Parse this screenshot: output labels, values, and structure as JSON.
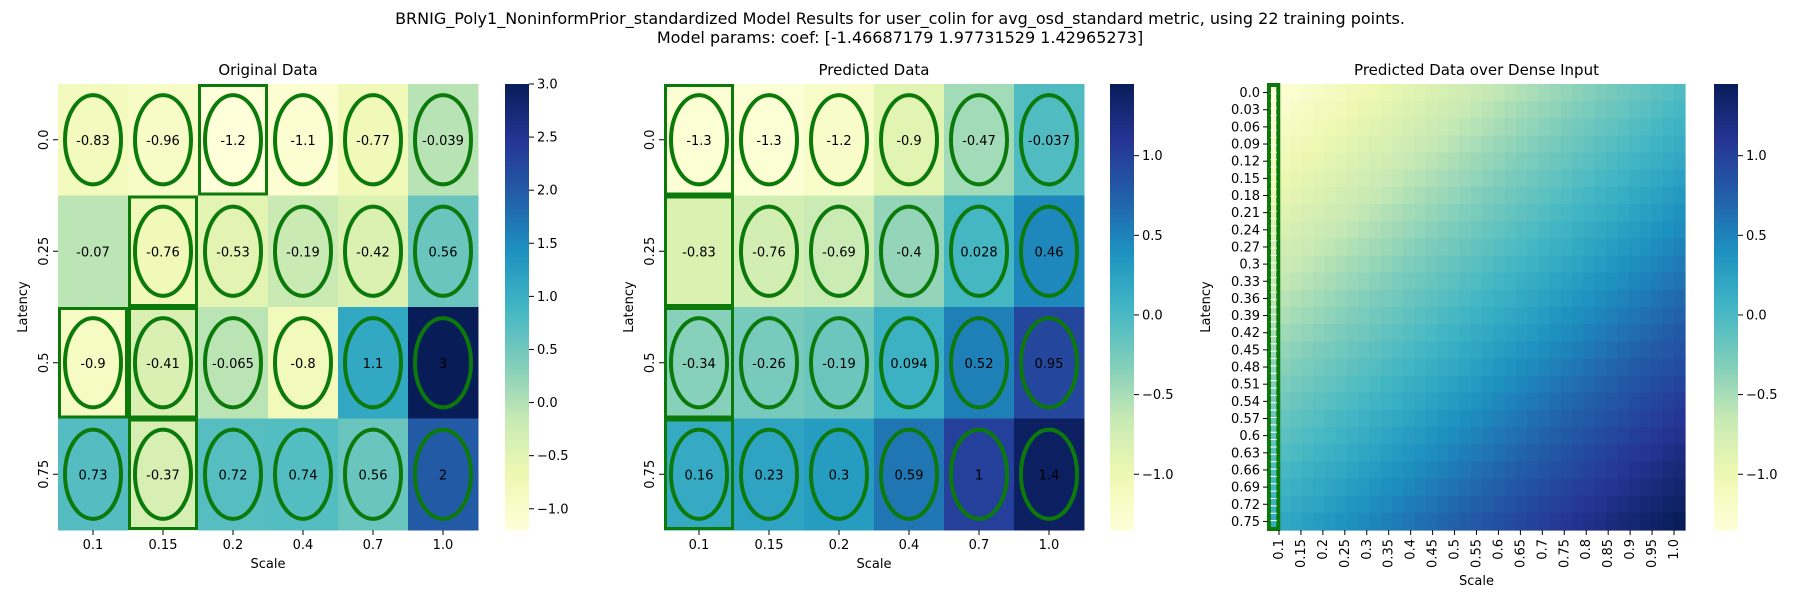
{
  "figure": {
    "title_line1": "BRNIG_Poly1_NoninformPrior_standardized Model Results for user_colin for avg_osd_standard metric, using 22 training points.",
    "title_line2": "Model params: coef: [-1.46687179  1.97731529  1.42965273]"
  },
  "colors": {
    "colormap": "YlGnBu",
    "highlight": "#0b7a0b"
  },
  "chart_data": [
    {
      "type": "heatmap",
      "title": "Original Data",
      "xlabel": "Scale",
      "ylabel": "Latency",
      "x_labels": [
        "0.1",
        "0.15",
        "0.2",
        "0.4",
        "0.7",
        "1.0"
      ],
      "y_labels": [
        "0.0",
        "0.25",
        "0.5",
        "0.75"
      ],
      "values": [
        [
          -0.83,
          -0.96,
          -1.2,
          -1.1,
          -0.77,
          -0.039
        ],
        [
          -0.07,
          -0.76,
          -0.53,
          -0.19,
          -0.42,
          0.56
        ],
        [
          -0.9,
          -0.41,
          -0.065,
          -0.8,
          1.1,
          3
        ],
        [
          0.73,
          -0.37,
          0.72,
          0.74,
          0.56,
          2
        ]
      ],
      "cell_text": [
        [
          "-0.83",
          "-0.96",
          "-1.2",
          "-1.1",
          "-0.77",
          "-0.039"
        ],
        [
          "-0.07",
          "-0.76",
          "-0.53",
          "-0.19",
          "-0.42",
          "0.56"
        ],
        [
          "-0.9",
          "-0.41",
          "-0.065",
          "-0.8",
          "1.1",
          "3"
        ],
        [
          "0.73",
          "-0.37",
          "0.72",
          "0.74",
          "0.56",
          "2"
        ]
      ],
      "ellipse_cells": [
        [
          0,
          0
        ],
        [
          0,
          1
        ],
        [
          0,
          2
        ],
        [
          0,
          3
        ],
        [
          0,
          4
        ],
        [
          0,
          5
        ],
        [
          1,
          1
        ],
        [
          1,
          2
        ],
        [
          1,
          3
        ],
        [
          1,
          4
        ],
        [
          1,
          5
        ],
        [
          2,
          0
        ],
        [
          2,
          1
        ],
        [
          2,
          2
        ],
        [
          2,
          3
        ],
        [
          2,
          4
        ],
        [
          2,
          5
        ],
        [
          3,
          0
        ],
        [
          3,
          1
        ],
        [
          3,
          2
        ],
        [
          3,
          3
        ],
        [
          3,
          4
        ],
        [
          3,
          5
        ]
      ],
      "box_cells": [
        [
          0,
          2
        ],
        [
          1,
          1
        ],
        [
          2,
          0
        ],
        [
          2,
          1
        ],
        [
          3,
          1
        ]
      ],
      "colorbar": {
        "vmin": -1.2,
        "vmax": 3.0,
        "ticks": [
          -1.0,
          -0.5,
          0.0,
          0.5,
          1.0,
          1.5,
          2.0,
          2.5,
          3.0
        ],
        "tick_labels": [
          "−1.0",
          "−0.5",
          "0.0",
          "0.5",
          "1.0",
          "1.5",
          "2.0",
          "2.5",
          "3.0"
        ]
      }
    },
    {
      "type": "heatmap",
      "title": "Predicted Data",
      "xlabel": "Scale",
      "ylabel": "Latency",
      "x_labels": [
        "0.1",
        "0.15",
        "0.2",
        "0.4",
        "0.7",
        "1.0"
      ],
      "y_labels": [
        "0.0",
        "0.25",
        "0.5",
        "0.75"
      ],
      "values": [
        [
          -1.3,
          -1.3,
          -1.2,
          -0.9,
          -0.47,
          -0.037
        ],
        [
          -0.83,
          -0.76,
          -0.69,
          -0.4,
          0.028,
          0.46
        ],
        [
          -0.34,
          -0.26,
          -0.19,
          0.094,
          0.52,
          0.95
        ],
        [
          0.16,
          0.23,
          0.3,
          0.59,
          1,
          1.4
        ]
      ],
      "cell_text": [
        [
          "-1.3",
          "-1.3",
          "-1.2",
          "-0.9",
          "-0.47",
          "-0.037"
        ],
        [
          "-0.83",
          "-0.76",
          "-0.69",
          "-0.4",
          "0.028",
          "0.46"
        ],
        [
          "-0.34",
          "-0.26",
          "-0.19",
          "0.094",
          "0.52",
          "0.95"
        ],
        [
          "0.16",
          "0.23",
          "0.3",
          "0.59",
          "1",
          "1.4"
        ]
      ],
      "ellipse_cells": [
        [
          0,
          0
        ],
        [
          0,
          1
        ],
        [
          0,
          2
        ],
        [
          0,
          3
        ],
        [
          0,
          4
        ],
        [
          0,
          5
        ],
        [
          1,
          1
        ],
        [
          1,
          2
        ],
        [
          1,
          3
        ],
        [
          1,
          4
        ],
        [
          1,
          5
        ],
        [
          2,
          0
        ],
        [
          2,
          1
        ],
        [
          2,
          2
        ],
        [
          2,
          3
        ],
        [
          2,
          4
        ],
        [
          2,
          5
        ],
        [
          3,
          0
        ],
        [
          3,
          1
        ],
        [
          3,
          2
        ],
        [
          3,
          3
        ],
        [
          3,
          4
        ],
        [
          3,
          5
        ]
      ],
      "box_cells": [
        [
          0,
          0
        ],
        [
          1,
          0
        ],
        [
          2,
          0
        ],
        [
          3,
          0
        ]
      ],
      "colorbar": {
        "vmin": -1.35,
        "vmax": 1.45,
        "ticks": [
          -1.0,
          -0.5,
          0.0,
          0.5,
          1.0
        ],
        "tick_labels": [
          "−1.0",
          "−0.5",
          "0.0",
          "0.5",
          "1.0"
        ]
      }
    },
    {
      "type": "heatmap",
      "title": "Predicted Data over Dense Input",
      "xlabel": "Scale",
      "ylabel": "Latency",
      "x_labels": [
        "0.1",
        "0.15",
        "0.2",
        "0.25",
        "0.3",
        "0.35",
        "0.4",
        "0.45",
        "0.5",
        "0.55",
        "0.6",
        "0.65",
        "0.7",
        "0.75",
        "0.8",
        "0.85",
        "0.9",
        "0.95",
        "1.0"
      ],
      "y_labels": [
        "0.0",
        "0.03",
        "0.06",
        "0.09",
        "0.12",
        "0.15",
        "0.18",
        "0.21",
        "0.24",
        "0.27",
        "0.3",
        "0.33",
        "0.36",
        "0.39",
        "0.42",
        "0.45",
        "0.48",
        "0.51",
        "0.54",
        "0.57",
        "0.6",
        "0.63",
        "0.66",
        "0.69",
        "0.72",
        "0.75"
      ],
      "grid": {
        "x_min": 0.1,
        "x_max": 1.0,
        "nx": 37,
        "y_min": 0.0,
        "y_max": 0.75,
        "ny": 26
      },
      "marked_column": "0.1",
      "colorbar": {
        "vmin": -1.35,
        "vmax": 1.45,
        "ticks": [
          -1.0,
          -0.5,
          0.0,
          0.5,
          1.0
        ],
        "tick_labels": [
          "−1.0",
          "−0.5",
          "0.0",
          "0.5",
          "1.0"
        ]
      }
    }
  ]
}
